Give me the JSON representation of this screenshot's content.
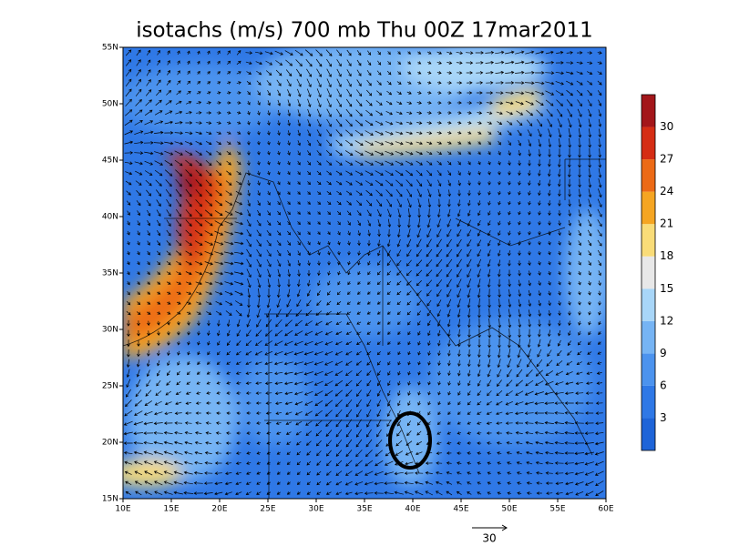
{
  "title": "isotachs (m/s) 700 mb Thu 00Z 17mar2011",
  "map": {
    "lon_labels": [
      "10E",
      "15E",
      "20E",
      "25E",
      "30E",
      "35E",
      "40E",
      "45E",
      "50E",
      "55E",
      "60E"
    ],
    "lat_labels": [
      "15N",
      "20N",
      "25N",
      "30N",
      "35N",
      "40N",
      "45N",
      "50N",
      "55N"
    ]
  },
  "colorbar": {
    "levels": [
      3,
      6,
      9,
      12,
      15,
      18,
      21,
      24,
      27,
      30
    ],
    "colors": [
      "#1e64d8",
      "#2f78e6",
      "#4c93ee",
      "#76b4f4",
      "#a8d6f8",
      "#e8e8e8",
      "#f9dc78",
      "#f5a522",
      "#ec6a16",
      "#d52d14",
      "#a3161a"
    ]
  },
  "reference_vector": {
    "label": "30"
  }
}
